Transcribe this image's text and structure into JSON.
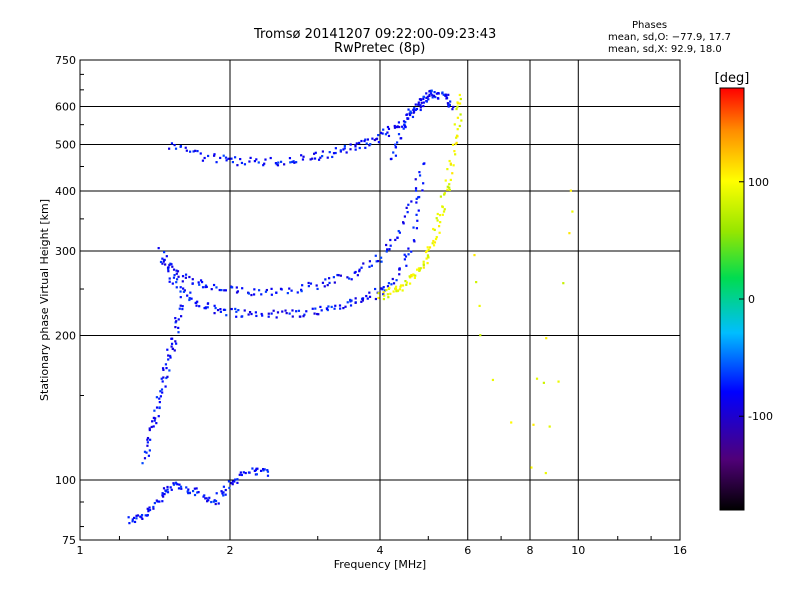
{
  "header": {
    "title_line1": "Tromsø 20141207 09:22:00-09:23:43",
    "title_line2": "RwPretec (8p)",
    "phase_heading": "Phases",
    "phase_o": "mean, sd,O: −77.9, 17.7",
    "phase_x": "mean, sd,X:  92.9, 18.0"
  },
  "chart_data": {
    "type": "scatter",
    "title": "Tromsø 20141207 09:22:00-09:23:43",
    "subtitle": "RwPretec (8p)",
    "xlabel": "Frequency [MHz]",
    "ylabel": "Stationary phase Virtual Height [km]",
    "x_scale": "log",
    "y_scale": "log",
    "xlim": [
      1,
      16
    ],
    "ylim": [
      75,
      750
    ],
    "x_ticks": [
      1,
      2,
      4,
      6,
      8,
      10,
      16
    ],
    "y_ticks": [
      75,
      100,
      200,
      300,
      400,
      500,
      600,
      750
    ],
    "grid": true,
    "colorbar": {
      "label": "[deg]",
      "range": [
        -180,
        180
      ],
      "ticks": [
        -100,
        0,
        100
      ]
    },
    "series": [
      {
        "mode": "O",
        "mean_phase_deg": -77.9,
        "sd_phase_deg": 17.7,
        "traces": [
          {
            "name_hint": "E-layer",
            "x": [
              1.25,
              1.35,
              1.45,
              1.55,
              1.7,
              1.85,
              2.0,
              2.2,
              2.4
            ],
            "y": [
              82,
              85,
              92,
              98,
              95,
              90,
              98,
              105,
              104
            ]
          },
          {
            "name_hint": "E-ramp",
            "x": [
              1.35,
              1.4,
              1.45,
              1.5,
              1.55,
              1.6
            ],
            "y": [
              110,
              130,
              150,
              175,
              200,
              240
            ]
          },
          {
            "name_hint": "F1-low",
            "x": [
              1.45,
              1.55,
              1.7,
              1.9,
              2.2,
              2.6,
              3.0,
              3.4,
              3.8,
              4.2,
              4.6,
              4.9
            ],
            "y": [
              300,
              255,
              235,
              226,
              222,
              222,
              225,
              232,
              240,
              255,
              300,
              420
            ]
          },
          {
            "name_hint": "F1-mid",
            "x": [
              1.45,
              1.6,
              1.8,
              2.1,
              2.5,
              3.0,
              3.5,
              4.0,
              4.5,
              4.9
            ],
            "y": [
              290,
              265,
              252,
              247,
              248,
              255,
              268,
              290,
              340,
              470
            ]
          },
          {
            "name_hint": "F2-echo",
            "x": [
              1.5,
              1.8,
              2.1,
              2.5,
              2.9,
              3.3,
              3.7,
              4.0,
              4.4,
              4.8,
              5.2
            ],
            "y": [
              500,
              470,
              462,
              460,
              470,
              485,
              500,
              520,
              555,
              600,
              640
            ]
          },
          {
            "name_hint": "upper",
            "x": [
              4.2,
              4.5,
              4.8,
              5.1,
              5.4,
              5.6
            ],
            "y": [
              460,
              560,
              620,
              640,
              630,
              600
            ]
          }
        ]
      },
      {
        "mode": "X",
        "mean_phase_deg": 92.9,
        "sd_phase_deg": 18.0,
        "traces": [
          {
            "name_hint": "X-trace",
            "x": [
              4.0,
              4.3,
              4.6,
              4.9,
              5.1,
              5.3,
              5.5,
              5.7,
              5.85
            ],
            "y": [
              242,
              248,
              262,
              280,
              310,
              360,
              430,
              530,
              640
            ]
          },
          {
            "name_hint": "X-sparse",
            "x": [
              6.2,
              6.3,
              8.0,
              8.5,
              8.7,
              9.6,
              9.7
            ],
            "y": [
              290,
              200,
              105,
              200,
              104,
              400,
              300
            ]
          }
        ]
      }
    ]
  }
}
